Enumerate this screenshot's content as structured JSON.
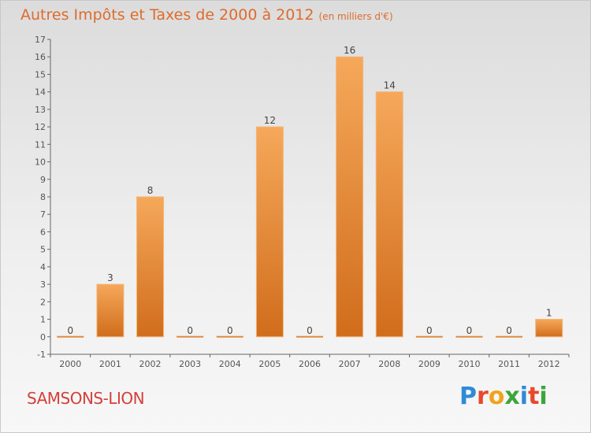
{
  "title": "Autres Impôts et Taxes de 2000 à 2012",
  "subtitle": "(en milliers d'€)",
  "commune": "SAMSONS-LION",
  "logo": {
    "letters": [
      "P",
      "r",
      "o",
      "x",
      "i",
      "t",
      "i"
    ],
    "colors": [
      "#2e8bd8",
      "#e8482b",
      "#f0a31c",
      "#3aa63a",
      "#2e8bd8",
      "#e8482b",
      "#3aa63a"
    ]
  },
  "colors": {
    "title": "#de6b2c",
    "commune": "#d43f3a",
    "bar_top": "#f6a85a",
    "bar_bottom": "#d06d1c"
  },
  "chart_data": {
    "type": "bar",
    "title": "Autres Impôts et Taxes de 2000 à 2012",
    "subtitle": "(en milliers d'€)",
    "categories": [
      "2000",
      "2001",
      "2002",
      "2003",
      "2004",
      "2005",
      "2006",
      "2007",
      "2008",
      "2009",
      "2010",
      "2011",
      "2012"
    ],
    "values": [
      0,
      3,
      8,
      0,
      0,
      12,
      0,
      16,
      14,
      0,
      0,
      0,
      1
    ],
    "ylim": [
      -1,
      17
    ],
    "yticks": [
      -1,
      0,
      1,
      2,
      3,
      4,
      5,
      6,
      7,
      8,
      9,
      10,
      11,
      12,
      13,
      14,
      15,
      16,
      17
    ],
    "grid": false,
    "xlabel": "",
    "ylabel": ""
  }
}
